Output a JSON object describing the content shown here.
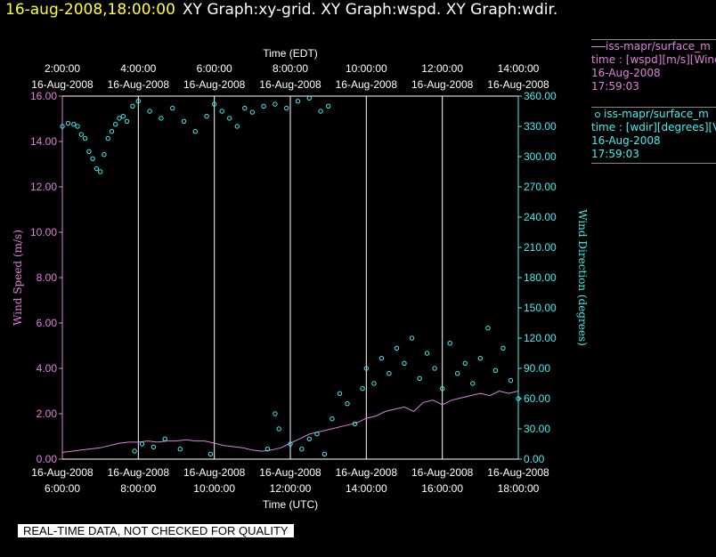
{
  "header": {
    "timestamp": "16-aug-2008,18:00:00",
    "graphs": "XY Graph:xy-grid.  XY Graph:wspd.  XY Graph:wdir."
  },
  "legend": [
    {
      "line1": "iss-mapr/surface_m",
      "line2": "time : [wspd][m/s][Wind",
      "line3": "16-Aug-2008",
      "line4": "17:59:03",
      "color": "#e080e0"
    },
    {
      "line1": "iss-mapr/surface_m",
      "line2": "time : [wdir][degrees][V",
      "line3": "16-Aug-2008",
      "line4": "17:59:03",
      "color": "#40f0f0"
    }
  ],
  "footer": "REAL-TIME DATA, NOT CHECKED FOR QUALITY",
  "chart_data": {
    "type": "line",
    "top_axis_title": "Time (EDT)",
    "bottom_axis_title": "Time (UTC)",
    "top_ticks": [
      [
        "2:00:00",
        "16-Aug-2008"
      ],
      [
        "4:00:00",
        "16-Aug-2008"
      ],
      [
        "6:00:00",
        "16-Aug-2008"
      ],
      [
        "8:00:00",
        "16-Aug-2008"
      ],
      [
        "10:00:00",
        "16-Aug-2008"
      ],
      [
        "12:00:00",
        "16-Aug-2008"
      ],
      [
        "14:00:00",
        "16-Aug-2008"
      ]
    ],
    "bottom_ticks": [
      [
        "16-Aug-2008",
        "6:00:00"
      ],
      [
        "16-Aug-2008",
        "8:00:00"
      ],
      [
        "16-Aug-2008",
        "10:00:00"
      ],
      [
        "16-Aug-2008",
        "12:00:00"
      ],
      [
        "16-Aug-2008",
        "14:00:00"
      ],
      [
        "16-Aug-2008",
        "16:00:00"
      ],
      [
        "16-Aug-2008",
        "18:00:00"
      ]
    ],
    "x_range_utc_hours": [
      6,
      18
    ],
    "left_axis": {
      "label": "Wind Speed (m/s)",
      "range": [
        0,
        16
      ],
      "ticks": [
        "0.00",
        "2.00",
        "4.00",
        "6.00",
        "8.00",
        "10.00",
        "12.00",
        "14.00",
        "16.00"
      ],
      "color": "#e080e0"
    },
    "right_axis": {
      "label": "Wind Direction (degrees)",
      "range": [
        0,
        360
      ],
      "ticks": [
        "0.00",
        "30.00",
        "60.00",
        "90.00",
        "120.00",
        "150.00",
        "180.00",
        "210.00",
        "240.00",
        "270.00",
        "300.00",
        "330.00",
        "360.00"
      ],
      "color": "#40f0f0"
    },
    "grid": "vertical lines at each 2-hour tick",
    "wspd_series": {
      "name": "wspd",
      "points": [
        [
          6.0,
          0.3
        ],
        [
          6.25,
          0.35
        ],
        [
          6.5,
          0.4
        ],
        [
          6.75,
          0.45
        ],
        [
          7.0,
          0.5
        ],
        [
          7.25,
          0.6
        ],
        [
          7.5,
          0.7
        ],
        [
          7.75,
          0.75
        ],
        [
          8.0,
          0.75
        ],
        [
          8.25,
          0.8
        ],
        [
          8.5,
          0.75
        ],
        [
          8.75,
          0.8
        ],
        [
          9.0,
          0.8
        ],
        [
          9.25,
          0.85
        ],
        [
          9.5,
          0.8
        ],
        [
          9.75,
          0.8
        ],
        [
          10.0,
          0.7
        ],
        [
          10.25,
          0.6
        ],
        [
          10.5,
          0.55
        ],
        [
          10.75,
          0.5
        ],
        [
          11.0,
          0.4
        ],
        [
          11.25,
          0.35
        ],
        [
          11.5,
          0.4
        ],
        [
          11.75,
          0.5
        ],
        [
          12.0,
          0.7
        ],
        [
          12.25,
          0.9
        ],
        [
          12.5,
          1.1
        ],
        [
          12.75,
          1.2
        ],
        [
          13.0,
          1.3
        ],
        [
          13.25,
          1.4
        ],
        [
          13.5,
          1.5
        ],
        [
          13.75,
          1.6
        ],
        [
          14.0,
          1.8
        ],
        [
          14.25,
          1.9
        ],
        [
          14.5,
          2.1
        ],
        [
          14.75,
          2.2
        ],
        [
          15.0,
          2.3
        ],
        [
          15.25,
          2.1
        ],
        [
          15.5,
          2.5
        ],
        [
          15.75,
          2.6
        ],
        [
          16.0,
          2.4
        ],
        [
          16.25,
          2.6
        ],
        [
          16.5,
          2.7
        ],
        [
          16.75,
          2.8
        ],
        [
          17.0,
          2.9
        ],
        [
          17.25,
          2.8
        ],
        [
          17.5,
          3.0
        ],
        [
          17.75,
          2.9
        ],
        [
          18.0,
          3.0
        ]
      ]
    },
    "wdir_series": {
      "name": "wdir",
      "points": [
        [
          6.0,
          330
        ],
        [
          6.15,
          333
        ],
        [
          6.3,
          332
        ],
        [
          6.4,
          330
        ],
        [
          6.5,
          322
        ],
        [
          6.6,
          318
        ],
        [
          6.7,
          305
        ],
        [
          6.8,
          298
        ],
        [
          6.9,
          288
        ],
        [
          7.0,
          285
        ],
        [
          7.1,
          302
        ],
        [
          7.2,
          318
        ],
        [
          7.3,
          325
        ],
        [
          7.4,
          332
        ],
        [
          7.5,
          338
        ],
        [
          7.6,
          340
        ],
        [
          7.7,
          335
        ],
        [
          7.85,
          350
        ],
        [
          8.0,
          355
        ],
        [
          8.3,
          345
        ],
        [
          8.6,
          338
        ],
        [
          8.9,
          348
        ],
        [
          9.2,
          335
        ],
        [
          9.5,
          325
        ],
        [
          9.8,
          340
        ],
        [
          10.0,
          352
        ],
        [
          10.2,
          345
        ],
        [
          10.4,
          338
        ],
        [
          10.6,
          330
        ],
        [
          10.8,
          348
        ],
        [
          11.0,
          344
        ],
        [
          11.3,
          350
        ],
        [
          11.6,
          352
        ],
        [
          11.9,
          348
        ],
        [
          12.2,
          355
        ],
        [
          12.5,
          358
        ],
        [
          12.8,
          345
        ],
        [
          13.0,
          350
        ],
        [
          7.9,
          8
        ],
        [
          8.1,
          15
        ],
        [
          8.4,
          12
        ],
        [
          8.7,
          20
        ],
        [
          9.1,
          10
        ],
        [
          9.9,
          5
        ],
        [
          11.4,
          10
        ],
        [
          11.6,
          45
        ],
        [
          11.7,
          30
        ],
        [
          12.0,
          15
        ],
        [
          12.3,
          10
        ],
        [
          12.5,
          20
        ],
        [
          12.7,
          25
        ],
        [
          12.9,
          5
        ],
        [
          13.1,
          40
        ],
        [
          13.3,
          65
        ],
        [
          13.5,
          55
        ],
        [
          13.7,
          35
        ],
        [
          13.9,
          70
        ],
        [
          14.0,
          90
        ],
        [
          14.2,
          75
        ],
        [
          14.4,
          100
        ],
        [
          14.6,
          85
        ],
        [
          14.8,
          110
        ],
        [
          15.0,
          95
        ],
        [
          15.2,
          120
        ],
        [
          15.4,
          80
        ],
        [
          15.6,
          105
        ],
        [
          15.8,
          90
        ],
        [
          16.0,
          70
        ],
        [
          16.2,
          115
        ],
        [
          16.4,
          85
        ],
        [
          16.6,
          95
        ],
        [
          16.8,
          75
        ],
        [
          17.0,
          100
        ],
        [
          17.2,
          130
        ],
        [
          17.4,
          88
        ],
        [
          17.6,
          110
        ],
        [
          17.8,
          78
        ],
        [
          18.0,
          60
        ]
      ]
    }
  }
}
